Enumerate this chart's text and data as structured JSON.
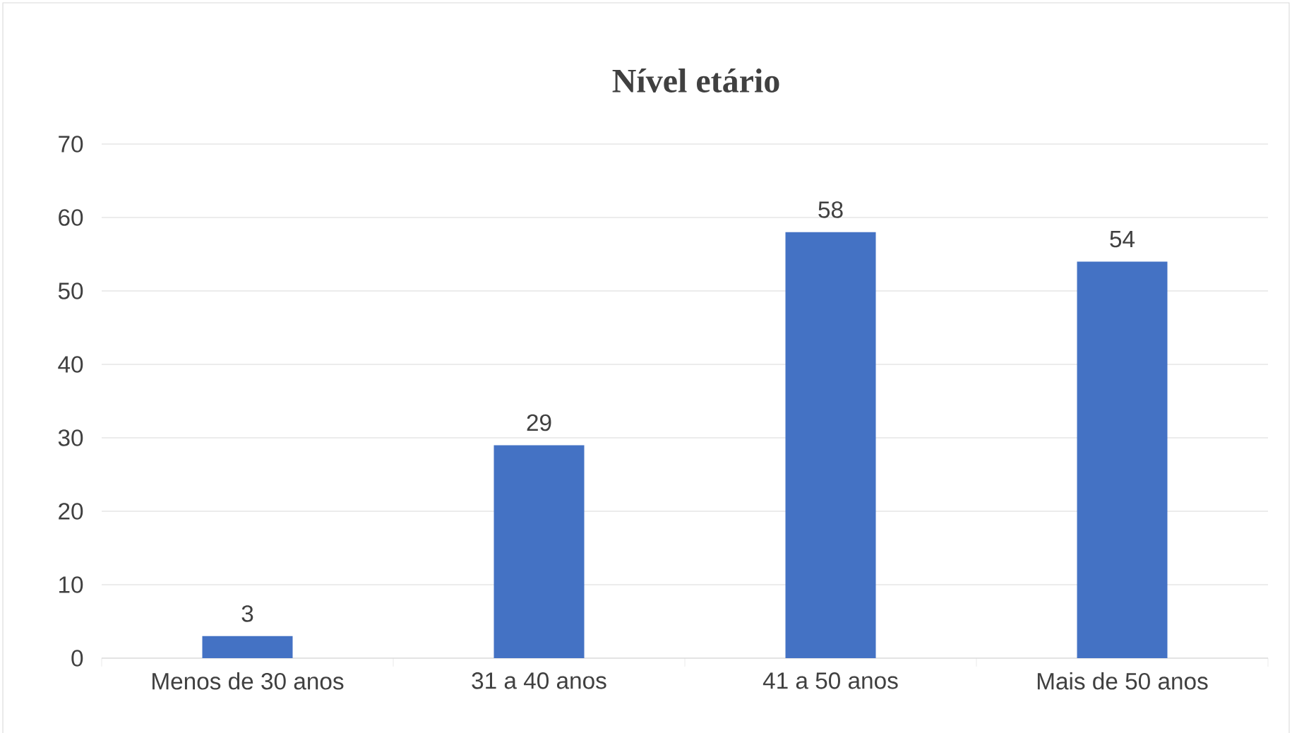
{
  "chart_data": {
    "type": "bar",
    "title": "Nível etário",
    "categories": [
      "Menos de 30 anos",
      "31 a 40 anos",
      "41 a 50 anos",
      "Mais de 50 anos"
    ],
    "values": [
      3,
      29,
      58,
      54
    ],
    "color": "#4472c4",
    "ylim": [
      0,
      70
    ],
    "yticks": [
      0,
      10,
      20,
      30,
      40,
      50,
      60,
      70
    ],
    "grid": "y",
    "data_labels": true
  }
}
